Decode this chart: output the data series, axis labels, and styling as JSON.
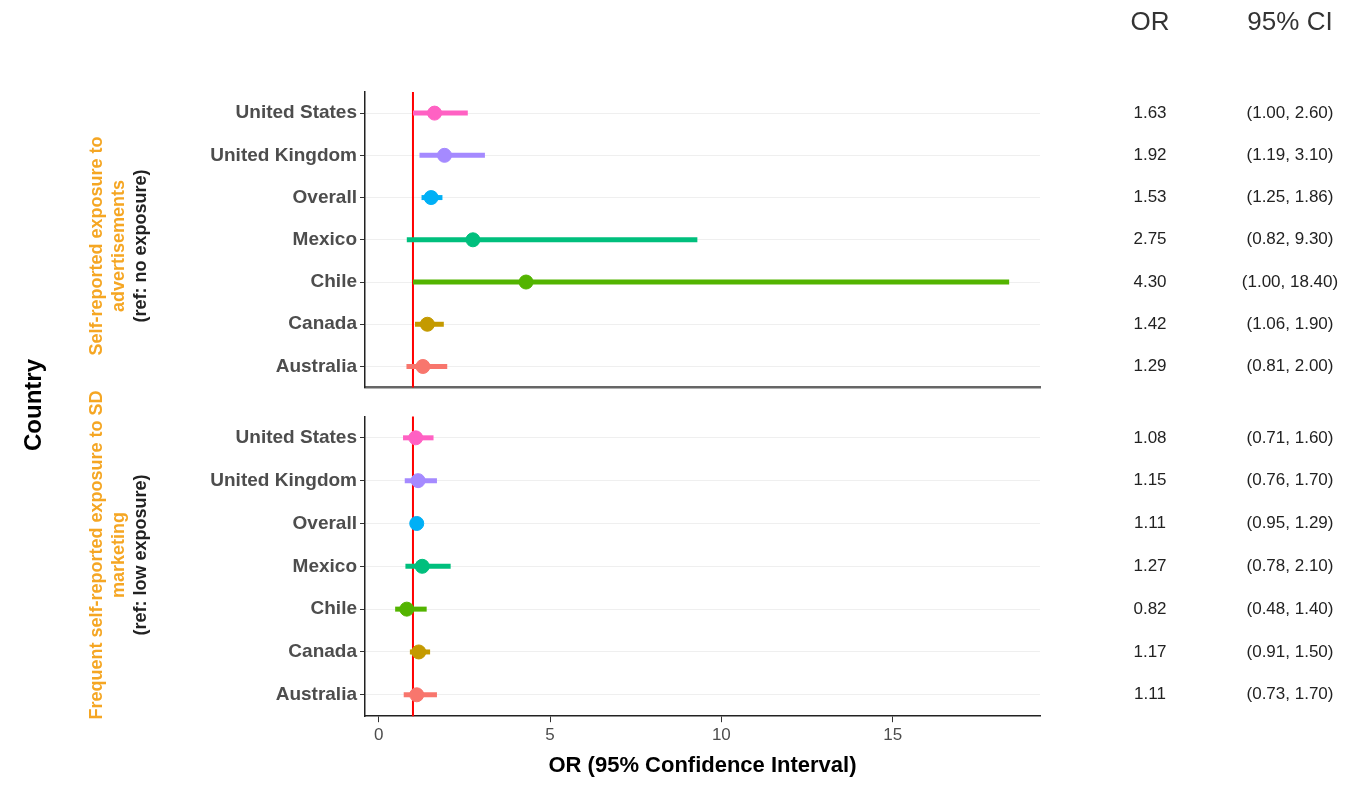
{
  "chart_data": [
    {
      "type": "scatter",
      "orientation": "horizontal",
      "ylabel": "Self-reported exposure to advertisements",
      "annotations": [
        "(ref: no exposure)",
        "Country",
        "OR",
        "95% CI",
        "(1.00, 2.60)",
        "(1.19, 3.10)",
        "(1.25, 1.86)",
        "(0.82, 9.30)",
        "(1.00, 18.40)",
        "(1.06, 1.90)",
        "(0.81, 2.00)"
      ],
      "categories": [
        "United States",
        "United Kingdom",
        "Overall",
        "Mexico",
        "Chile",
        "Canada",
        "Australia"
      ],
      "values": [
        1.63,
        1.92,
        1.53,
        2.75,
        4.3,
        1.42,
        1.29
      ],
      "errors": [
        [
          1.0,
          2.6
        ],
        [
          1.19,
          3.1
        ],
        [
          1.25,
          1.86
        ],
        [
          0.82,
          9.3
        ],
        [
          1.0,
          18.4
        ],
        [
          1.06,
          1.9
        ],
        [
          0.81,
          2.0
        ]
      ],
      "value_labels": [
        "1.63",
        "1.92",
        "1.53",
        "2.75",
        "4.30",
        "1.42",
        "1.29"
      ],
      "colors": [
        "#ff61c3",
        "#a58aff",
        "#00b0f6",
        "#00bf7d",
        "#53b400",
        "#c49a00",
        "#f8766d"
      ],
      "xlim": [
        -0.4,
        19.3
      ],
      "xticks": [
        0,
        5,
        10,
        15
      ],
      "tick_labels": "y",
      "grid": "y",
      "legend": false,
      "marker": "circle",
      "ref_lines": [
        {
          "axis": "x",
          "value": 1,
          "color": "#ff0000"
        }
      ]
    },
    {
      "type": "scatter",
      "orientation": "horizontal",
      "ylabel": "Frequent self-reported exposure to SD marketing",
      "xlabel": "OR (95% Confidence Interval)",
      "annotations": [
        "(ref: low exposure)",
        "(0.71, 1.60)",
        "(0.76, 1.70)",
        "(0.95, 1.29)",
        "(0.78, 2.10)",
        "(0.48, 1.40)",
        "(0.91, 1.50)",
        "(0.73, 1.70)"
      ],
      "categories": [
        "United States",
        "United Kingdom",
        "Overall",
        "Mexico",
        "Chile",
        "Canada",
        "Australia"
      ],
      "values": [
        1.08,
        1.15,
        1.11,
        1.27,
        0.82,
        1.17,
        1.11
      ],
      "errors": [
        [
          0.71,
          1.6
        ],
        [
          0.76,
          1.7
        ],
        [
          0.95,
          1.29
        ],
        [
          0.78,
          2.1
        ],
        [
          0.48,
          1.4
        ],
        [
          0.91,
          1.5
        ],
        [
          0.73,
          1.7
        ]
      ],
      "value_labels": [
        "1.08",
        "1.15",
        "1.11",
        "1.27",
        "0.82",
        "1.17",
        "1.11"
      ],
      "colors": [
        "#ff61c3",
        "#a58aff",
        "#00b0f6",
        "#00bf7d",
        "#53b400",
        "#c49a00",
        "#f8766d"
      ],
      "xlim": [
        -0.4,
        19.3
      ],
      "xticks": [
        0,
        5,
        10,
        15
      ],
      "grid": "y",
      "legend": false,
      "marker": "circle",
      "ref_lines": [
        {
          "axis": "x",
          "value": 1,
          "color": "#ff0000"
        }
      ]
    }
  ]
}
